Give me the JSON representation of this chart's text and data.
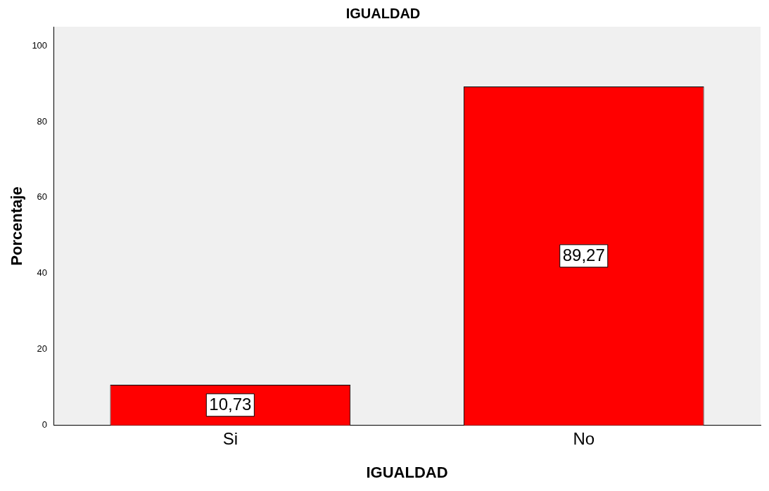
{
  "chart_data": {
    "type": "bar",
    "title": "IGUALDAD",
    "xlabel": "IGUALDAD",
    "ylabel": "Porcentaje",
    "categories": [
      "Si",
      "No"
    ],
    "values": [
      10.73,
      89.27
    ],
    "value_labels": [
      "10,73",
      "89,27"
    ],
    "color": "#ff0000",
    "ylim": [
      0,
      105
    ],
    "yticks": [
      0,
      20,
      40,
      60,
      80,
      100
    ],
    "grid": false,
    "legend": false
  }
}
